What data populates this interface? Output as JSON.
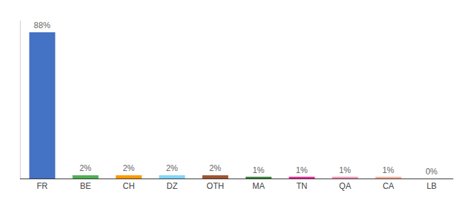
{
  "chart_data": {
    "type": "bar",
    "categories": [
      "FR",
      "BE",
      "CH",
      "DZ",
      "OTH",
      "MA",
      "TN",
      "QA",
      "CA",
      "LB"
    ],
    "values": [
      88,
      2,
      2,
      2,
      2,
      1,
      1,
      1,
      1,
      0
    ],
    "value_labels": [
      "88%",
      "2%",
      "2%",
      "2%",
      "2%",
      "1%",
      "1%",
      "1%",
      "1%",
      "0%"
    ],
    "colors": [
      "#4472c4",
      "#4caf50",
      "#ff9800",
      "#81d4fa",
      "#a0522d",
      "#2e7d32",
      "#e91e8c",
      "#f48fb1",
      "#ffab91",
      "#d7ccc8"
    ],
    "ylim": [
      0,
      95
    ],
    "data_labels": true,
    "tick_labels": "x",
    "grid": false
  }
}
